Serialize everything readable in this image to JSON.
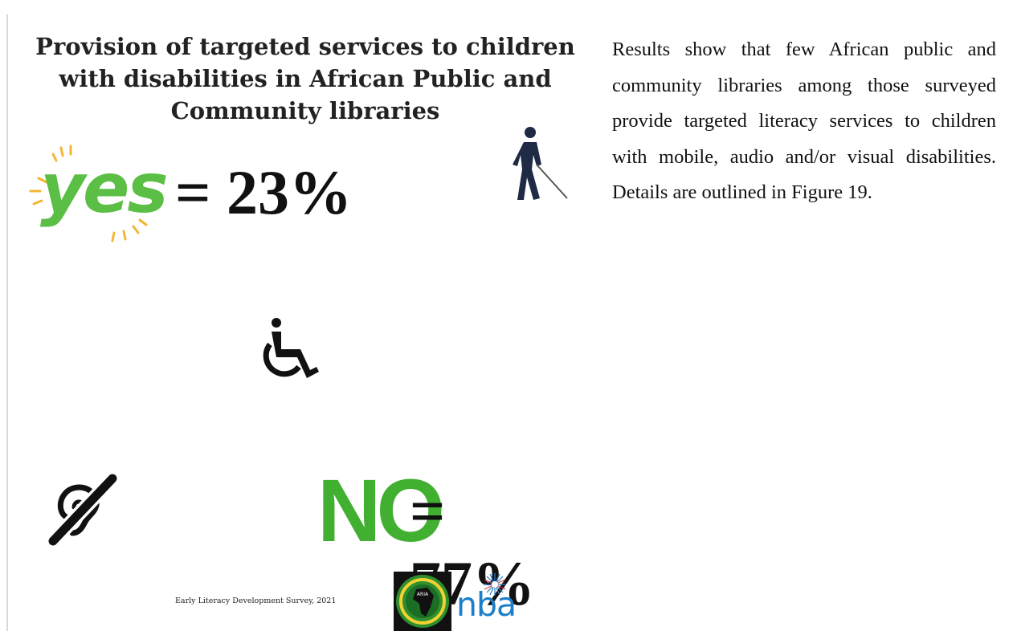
{
  "figure": {
    "title": "Provision of targeted services to children with disabilities in African Public and Community libraries",
    "yes": {
      "word": "yes",
      "value_text": "= 23%",
      "percent": 23
    },
    "no": {
      "word": "NO",
      "value_text": "= 77%",
      "percent": 77
    },
    "icons": [
      "blind-person-with-cane-icon",
      "wheelchair-icon",
      "hearing-impaired-icon"
    ],
    "credit": "Early Literacy Development Survey, 2021",
    "logos": {
      "aria": "ARIA",
      "nba": "nba"
    },
    "colors": {
      "yes_green": "#5bbf45",
      "no_green": "#41b031",
      "spark_orange": "#f2b632",
      "nba_blue": "#1a7fc8"
    }
  },
  "body": {
    "paragraph": "Results show that few African public and community libraries among those surveyed provide targeted literacy services to children with mobile, audio and/or visual disabilities. Details are outlined in Figure 19."
  }
}
